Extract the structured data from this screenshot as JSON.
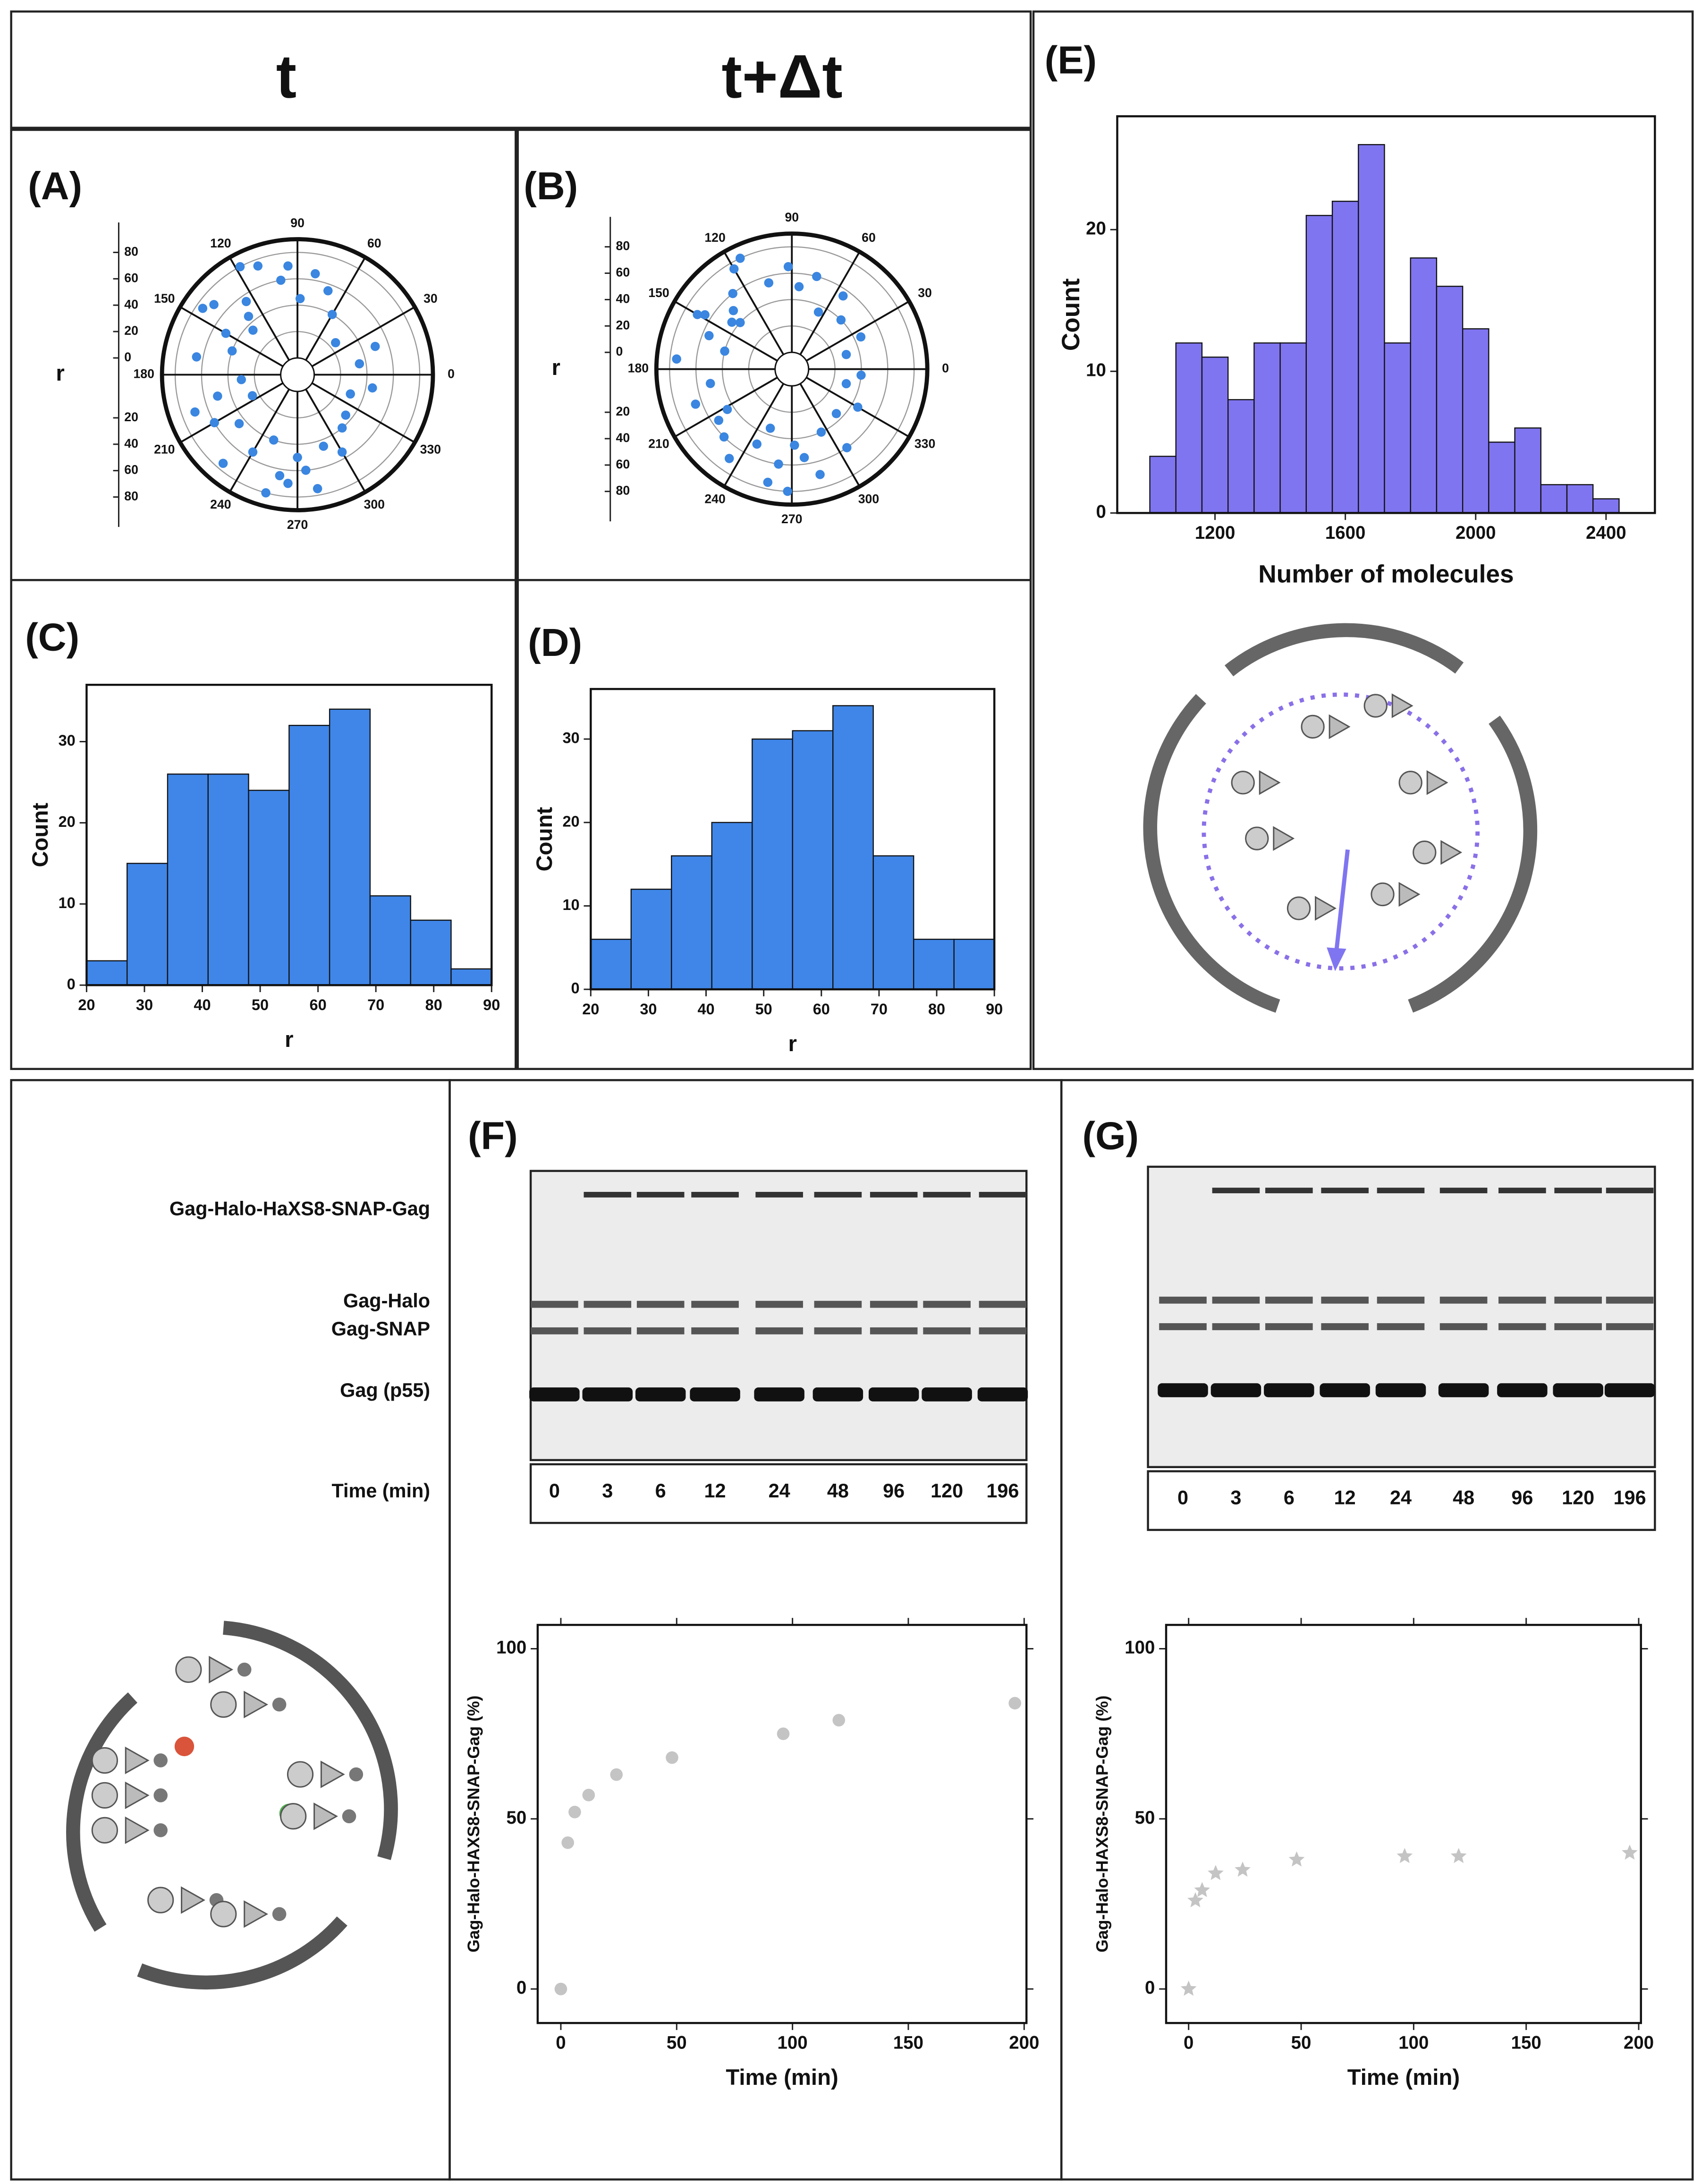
{
  "header": {
    "left": "t",
    "right": "t+Δt"
  },
  "gel": {
    "panels": [
      "(F)",
      "(G)"
    ],
    "bands": [
      "Gag-Halo-HaXS8-SNAP-Gag",
      "Gag-Halo",
      "Gag-SNAP",
      "Gag (p55)"
    ],
    "time_label": "Time (min)",
    "lanes": [
      "0",
      "3",
      "6",
      "12",
      "24",
      "48",
      "96",
      "120",
      "196"
    ]
  },
  "chart_data": [
    {
      "type": "polar",
      "label": "(A)",
      "ylabel": "r",
      "color": "#3a86e0",
      "rlim": [
        0,
        90
      ],
      "rticks": [
        0,
        20,
        40,
        60,
        80
      ],
      "thetaticks": [
        0,
        30,
        60,
        90,
        120,
        150,
        180,
        210,
        240,
        270,
        300,
        330
      ],
      "theta": [
        95,
        100,
        110,
        118,
        125,
        130,
        140,
        150,
        160,
        170,
        185,
        195,
        200,
        210,
        220,
        230,
        240,
        250,
        255,
        260,
        265,
        270,
        275,
        280,
        290,
        300,
        310,
        320,
        340,
        350,
        10,
        20,
        40,
        60,
        70,
        80,
        88,
        135,
        145,
        205
      ],
      "r": [
        70,
        60,
        75,
        80,
        55,
        45,
        70,
        50,
        40,
        65,
        30,
        50,
        70,
        60,
        45,
        75,
        55,
        40,
        80,
        65,
        70,
        50,
        60,
        75,
        45,
        55,
        40,
        35,
        30,
        45,
        35,
        50,
        25,
        40,
        55,
        65,
        45,
        35,
        75,
        25
      ]
    },
    {
      "type": "polar",
      "label": "(B)",
      "ylabel": "r",
      "color": "#3a86e0",
      "rlim": [
        0,
        90
      ],
      "rticks": [
        0,
        20,
        40,
        60,
        80
      ],
      "thetaticks": [
        0,
        30,
        60,
        90,
        120,
        150,
        180,
        210,
        240,
        270,
        300,
        330
      ],
      "theta": [
        92,
        105,
        115,
        120,
        128,
        135,
        142,
        150,
        158,
        165,
        175,
        190,
        200,
        212,
        225,
        235,
        245,
        250,
        258,
        262,
        268,
        272,
        278,
        285,
        295,
        305,
        315,
        330,
        345,
        355,
        15,
        25,
        45,
        55,
        65,
        75,
        85,
        138,
        148,
        215
      ],
      "r": [
        65,
        55,
        80,
        75,
        60,
        50,
        45,
        70,
        55,
        40,
        75,
        50,
        65,
        45,
        60,
        70,
        50,
        35,
        75,
        60,
        80,
        45,
        55,
        70,
        40,
        60,
        35,
        45,
        30,
        40,
        30,
        45,
        40,
        55,
        35,
        60,
        50,
        40,
        65,
        55
      ]
    },
    {
      "type": "histogram",
      "label": "(C)",
      "xlabel": "r",
      "ylabel": "Count",
      "color": "#3f86e8",
      "bins": [
        20,
        27,
        34,
        41,
        48,
        55,
        62,
        69,
        76,
        83,
        90
      ],
      "counts": [
        3,
        15,
        26,
        26,
        24,
        32,
        34,
        11,
        8,
        2
      ],
      "xlim": [
        20,
        90
      ],
      "xticks": [
        20,
        30,
        40,
        50,
        60,
        70,
        80,
        90
      ],
      "ylim": [
        0,
        37
      ],
      "yticks": [
        0,
        10,
        20,
        30
      ]
    },
    {
      "type": "histogram",
      "label": "(D)",
      "xlabel": "r",
      "ylabel": "Count",
      "color": "#3f86e8",
      "bins": [
        20,
        27,
        34,
        41,
        48,
        55,
        62,
        69,
        76,
        83,
        90
      ],
      "counts": [
        6,
        12,
        16,
        20,
        30,
        31,
        34,
        16,
        6,
        6
      ],
      "xlim": [
        20,
        90
      ],
      "xticks": [
        20,
        30,
        40,
        50,
        60,
        70,
        80,
        90
      ],
      "ylim": [
        0,
        36
      ],
      "yticks": [
        0,
        10,
        20,
        30
      ]
    },
    {
      "type": "histogram",
      "label": "(E)",
      "xlabel": "Number of molecules",
      "ylabel": "Count",
      "color": "#8075f0",
      "bins": [
        1000,
        1080,
        1160,
        1240,
        1320,
        1400,
        1480,
        1560,
        1640,
        1720,
        1800,
        1880,
        1960,
        2040,
        2120,
        2200,
        2280,
        2360,
        2440
      ],
      "counts": [
        4,
        12,
        11,
        8,
        12,
        12,
        21,
        22,
        26,
        12,
        18,
        16,
        13,
        5,
        6,
        2,
        2,
        1
      ],
      "xlim": [
        900,
        2550
      ],
      "xticks": [
        1200,
        1600,
        2000,
        2400
      ],
      "ylim": [
        0,
        28
      ],
      "yticks": [
        0,
        10,
        20
      ]
    },
    {
      "type": "scatter",
      "marker": "circle",
      "xlabel": "Time (min)",
      "ylabel": "Gag-Halo-HAXS8-SNAP-Gag (%)",
      "color": "#c4c4c4",
      "x": [
        0,
        3,
        6,
        12,
        24,
        48,
        96,
        120,
        196
      ],
      "y": [
        0,
        43,
        52,
        57,
        63,
        68,
        75,
        79,
        84
      ],
      "xlim": [
        -10,
        201
      ],
      "xticks": [
        0,
        50,
        100,
        150,
        200
      ],
      "ylim": [
        -10,
        107
      ],
      "yticks": [
        0,
        50,
        100
      ]
    },
    {
      "type": "scatter",
      "marker": "star",
      "xlabel": "Time (min)",
      "ylabel": "Gag-Halo-HAXS8-SNAP-Gag (%)",
      "color": "#c4c4c4",
      "x": [
        0,
        3,
        6,
        12,
        24,
        48,
        96,
        120,
        196
      ],
      "y": [
        0,
        26,
        29,
        34,
        35,
        38,
        39,
        39,
        40
      ],
      "xlim": [
        -10,
        201
      ],
      "xticks": [
        0,
        50,
        100,
        150,
        200
      ],
      "ylim": [
        -10,
        107
      ],
      "yticks": [
        0,
        50,
        100
      ]
    }
  ]
}
